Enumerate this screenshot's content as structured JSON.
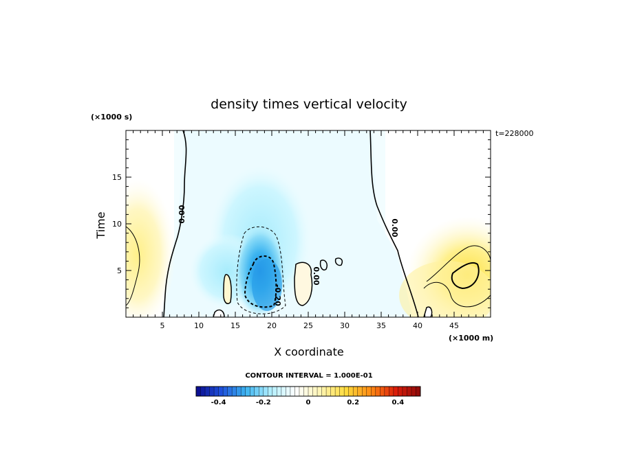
{
  "chart_data": {
    "type": "heatmap",
    "title": "density times vertical velocity",
    "xlabel": "X coordinate",
    "ylabel": "Time",
    "x_unit": "(×1000 m)",
    "y_unit": "(×1000 s)",
    "xlim": [
      0,
      50
    ],
    "ylim": [
      0,
      20
    ],
    "x_ticks": [
      5,
      10,
      15,
      20,
      25,
      30,
      35,
      40,
      45
    ],
    "y_ticks": [
      5,
      10,
      15
    ],
    "annotation": "t=228000",
    "contour_interval_label": "CONTOUR INTERVAL = 1.000E-01",
    "contour_labels": [
      "0.00",
      "0.00",
      "0.00",
      "-0.20"
    ],
    "colorbar": {
      "range": [
        -0.5,
        0.5
      ],
      "ticks": [
        -0.4,
        -0.2,
        0,
        0.2,
        0.4
      ],
      "tick_labels": [
        "-0.4",
        "-0.2",
        "0",
        "0.2",
        "0.4"
      ],
      "colors": [
        "#0a0a8c",
        "#1e50dc",
        "#3cb4f0",
        "#b4f0ff",
        "#ffffff",
        "#fff5b4",
        "#ffdc3c",
        "#ff8c14",
        "#dc1e0a",
        "#8c0a0a"
      ]
    },
    "features": [
      {
        "name": "updraft-core",
        "x": 19.5,
        "y": 3.5,
        "value": -0.3
      },
      {
        "name": "positive-region-right",
        "x": 46,
        "y": 4.5,
        "value": 0.15
      },
      {
        "name": "positive-region-left",
        "x": 1,
        "y": 9,
        "value": 0.1
      }
    ]
  }
}
